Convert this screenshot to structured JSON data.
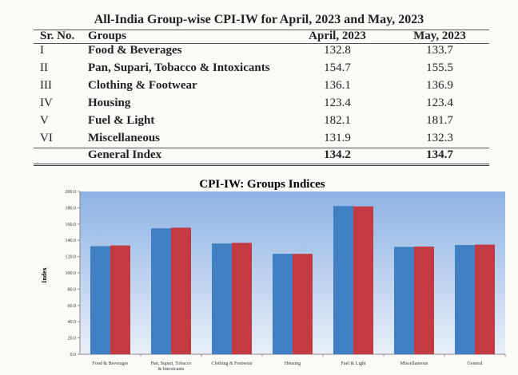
{
  "table": {
    "title": "All-India Group-wise CPI-IW for April, 2023 and May, 2023",
    "headers": [
      "Sr. No.",
      "Groups",
      "April, 2023",
      "May, 2023"
    ],
    "rows": [
      {
        "sr": "I",
        "group": "Food & Beverages",
        "april": "132.8",
        "may": "133.7"
      },
      {
        "sr": "II",
        "group": "Pan, Supari, Tobacco & Intoxicants",
        "april": "154.7",
        "may": "155.5"
      },
      {
        "sr": "III",
        "group": "Clothing & Footwear",
        "april": "136.1",
        "may": "136.9"
      },
      {
        "sr": "IV",
        "group": "Housing",
        "april": "123.4",
        "may": "123.4"
      },
      {
        "sr": "V",
        "group": "Fuel & Light",
        "april": "182.1",
        "may": "181.7"
      },
      {
        "sr": "VI",
        "group": "Miscellaneous",
        "april": "131.9",
        "may": "132.3"
      }
    ],
    "total": {
      "sr": "",
      "group": "General Index",
      "april": "134.2",
      "may": "134.7"
    }
  },
  "chart_data": {
    "type": "bar",
    "title": "CPI-IW: Groups Indices",
    "xlabel": "",
    "ylabel": "Index",
    "ylim": [
      0,
      200
    ],
    "yticks": [
      "0.0",
      "20.0",
      "40.0",
      "60.0",
      "80.0",
      "100.0",
      "120.0",
      "140.0",
      "160.0",
      "180.0",
      "200.0"
    ],
    "categories": [
      "Food & Beverages",
      "Pan, Supari, Tobacco & Intoxicants",
      "Clothing & Footwear",
      "Housing",
      "Fuel & Light",
      "Miscellaneous",
      "General"
    ],
    "series": [
      {
        "values": [
          132.8,
          154.7,
          136.1,
          123.4,
          182.1,
          131.9,
          134.2
        ],
        "color": "#3f7fc2"
      },
      {
        "values": [
          133.7,
          155.5,
          136.9,
          123.4,
          181.7,
          132.3,
          134.7
        ],
        "color": "#c23a42"
      }
    ],
    "grid": false,
    "legend": "none",
    "background": [
      "#8db2e4",
      "#e8eff9"
    ]
  }
}
